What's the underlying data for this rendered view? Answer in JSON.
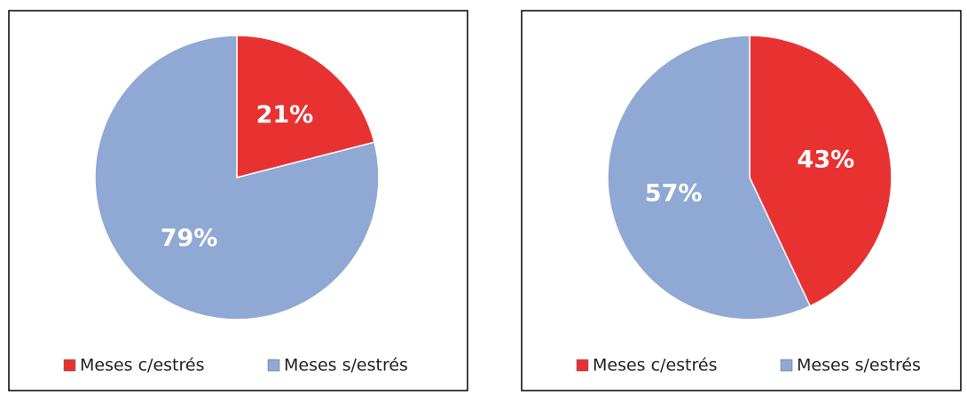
{
  "chart_data": [
    {
      "type": "pie",
      "categories": [
        "Meses c/estrés",
        "Meses s/estrés"
      ],
      "values": [
        21,
        79
      ],
      "value_labels": [
        "21%",
        "79%"
      ],
      "colors": [
        "#e83232",
        "#8fa8d4"
      ]
    },
    {
      "type": "pie",
      "categories": [
        "Meses c/estrés",
        "Meses s/estrés"
      ],
      "values": [
        43,
        57
      ],
      "value_labels": [
        "43%",
        "57%"
      ],
      "colors": [
        "#e83232",
        "#8fa8d4"
      ]
    }
  ]
}
